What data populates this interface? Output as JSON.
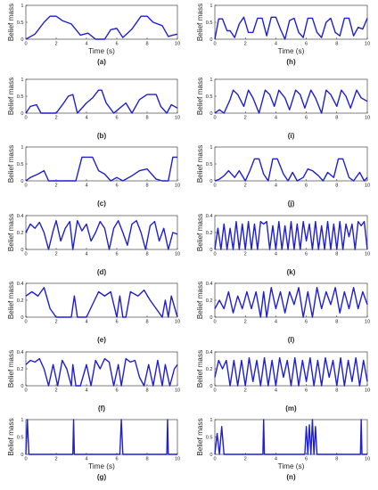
{
  "chart_data": [
    {
      "label": "(a)",
      "type": "line",
      "xlabel": "Time (s)",
      "ylabel": "Belief mass",
      "xlim": [
        0,
        10
      ],
      "ylim": [
        0,
        1
      ],
      "yticks": [
        0,
        0.5,
        1
      ],
      "xticks": [
        0,
        2,
        4,
        6,
        8,
        10
      ],
      "color": "#1f1fd2",
      "x": [
        0,
        0.6,
        1.2,
        1.6,
        2.0,
        2.4,
        3.0,
        3.6,
        4.1,
        4.6,
        5.2,
        5.6,
        6.0,
        6.4,
        7.0,
        7.6,
        8.0,
        8.4,
        9.0,
        9.4,
        9.7,
        10
      ],
      "y": [
        0,
        0.15,
        0.5,
        0.68,
        0.68,
        0.55,
        0.45,
        0.12,
        0.18,
        0.0,
        0.0,
        0.28,
        0.32,
        0.05,
        0.3,
        0.68,
        0.68,
        0.5,
        0.4,
        0.08,
        0.12,
        0.15
      ]
    },
    {
      "label": "(h)",
      "type": "line",
      "xlabel": "Time (s)",
      "ylabel": "Belief mass",
      "xlim": [
        0,
        10
      ],
      "ylim": [
        0,
        1
      ],
      "yticks": [
        0,
        0.5,
        1
      ],
      "xticks": [
        0,
        2,
        4,
        6,
        8,
        10
      ],
      "color": "#1f1fd2",
      "x": [
        0,
        0.25,
        0.5,
        0.8,
        1.0,
        1.3,
        1.6,
        1.9,
        2.2,
        2.5,
        2.8,
        3.1,
        3.4,
        3.7,
        4.0,
        4.3,
        4.6,
        4.9,
        5.2,
        5.5,
        5.8,
        6.1,
        6.4,
        6.7,
        7.0,
        7.3,
        7.6,
        7.9,
        8.2,
        8.5,
        8.8,
        9.1,
        9.4,
        9.7,
        10
      ],
      "y": [
        0,
        0.6,
        0.6,
        0.25,
        0.25,
        0.05,
        0.45,
        0.65,
        0.2,
        0.2,
        0.62,
        0.62,
        0.1,
        0.65,
        0.65,
        0.3,
        0.0,
        0.55,
        0.62,
        0.2,
        0.05,
        0.62,
        0.62,
        0.2,
        0.05,
        0.5,
        0.62,
        0.2,
        0.1,
        0.62,
        0.62,
        0.1,
        0.35,
        0.3,
        0.62
      ]
    },
    {
      "label": "(b)",
      "type": "line",
      "xlabel": "",
      "ylabel": "Belief mass",
      "xlim": [
        0,
        10
      ],
      "ylim": [
        0,
        1
      ],
      "yticks": [
        0,
        0.5,
        1
      ],
      "xticks": [
        0,
        2,
        4,
        6,
        8,
        10
      ],
      "color": "#1f1fd2",
      "x": [
        0,
        0.3,
        0.7,
        1.0,
        1.4,
        2.0,
        2.5,
        2.8,
        3.1,
        3.4,
        4.0,
        4.4,
        4.8,
        5.0,
        5.3,
        5.8,
        6.2,
        6.6,
        7.0,
        7.5,
        8.0,
        8.6,
        8.9,
        9.3,
        9.6,
        10
      ],
      "y": [
        0,
        0.2,
        0.25,
        0.0,
        0.0,
        0.0,
        0.3,
        0.5,
        0.55,
        0.0,
        0.3,
        0.45,
        0.68,
        0.68,
        0.3,
        0.0,
        0.15,
        0.3,
        0.0,
        0.4,
        0.55,
        0.55,
        0.2,
        0.0,
        0.25,
        0.15
      ]
    },
    {
      "label": "(i)",
      "type": "line",
      "xlabel": "",
      "ylabel": "Belief mass",
      "xlim": [
        0,
        10
      ],
      "ylim": [
        0,
        1
      ],
      "yticks": [
        0,
        0.5,
        1
      ],
      "xticks": [
        0,
        2,
        4,
        6,
        8,
        10
      ],
      "color": "#1f1fd2",
      "x": [
        0,
        0.3,
        0.6,
        1.0,
        1.2,
        1.5,
        1.9,
        2.2,
        2.5,
        2.9,
        3.3,
        3.6,
        3.9,
        4.2,
        4.6,
        4.9,
        5.3,
        5.6,
        5.9,
        6.3,
        6.6,
        7.0,
        7.3,
        7.6,
        8.0,
        8.3,
        8.6,
        8.9,
        9.3,
        9.6,
        10
      ],
      "y": [
        0,
        0.1,
        0.0,
        0.4,
        0.68,
        0.55,
        0.2,
        0.68,
        0.45,
        0.0,
        0.68,
        0.55,
        0.2,
        0.68,
        0.45,
        0.1,
        0.68,
        0.55,
        0.15,
        0.68,
        0.45,
        0.0,
        0.68,
        0.55,
        0.2,
        0.68,
        0.5,
        0.15,
        0.68,
        0.45,
        0.35
      ]
    },
    {
      "label": "(c)",
      "type": "line",
      "xlabel": "",
      "ylabel": "Belief mass",
      "xlim": [
        0,
        10
      ],
      "ylim": [
        0,
        1
      ],
      "yticks": [
        0,
        0.5,
        1
      ],
      "xticks": [
        0,
        2,
        4,
        6,
        8,
        10
      ],
      "color": "#1f1fd2",
      "x": [
        0,
        0.3,
        0.8,
        1.2,
        1.5,
        2.0,
        2.5,
        3.0,
        3.3,
        3.7,
        4.4,
        4.8,
        5.2,
        5.6,
        6.0,
        6.4,
        7.0,
        7.5,
        8.0,
        8.6,
        9.0,
        9.4,
        9.7,
        10
      ],
      "y": [
        0,
        0.1,
        0.2,
        0.3,
        0.0,
        0.0,
        0.0,
        0.0,
        0.0,
        0.7,
        0.7,
        0.3,
        0.2,
        0.0,
        0.1,
        0.0,
        0.15,
        0.3,
        0.35,
        0.05,
        0.0,
        0.0,
        0.7,
        0.7
      ]
    },
    {
      "label": "(j)",
      "type": "line",
      "xlabel": "",
      "ylabel": "Belief mass",
      "xlim": [
        0,
        10
      ],
      "ylim": [
        0,
        1
      ],
      "yticks": [
        0,
        0.5,
        1
      ],
      "xticks": [
        0,
        2,
        4,
        6,
        8,
        10
      ],
      "color": "#1f1fd2",
      "x": [
        0,
        0.3,
        0.6,
        0.9,
        1.3,
        1.6,
        2.0,
        2.3,
        2.6,
        2.9,
        3.2,
        3.5,
        3.8,
        4.1,
        4.5,
        4.8,
        5.1,
        5.4,
        5.8,
        6.1,
        6.4,
        6.8,
        7.1,
        7.4,
        7.8,
        8.1,
        8.4,
        8.8,
        9.1,
        9.5,
        9.8,
        10
      ],
      "y": [
        0,
        0.05,
        0.15,
        0.3,
        0.1,
        0.3,
        0.0,
        0.3,
        0.65,
        0.65,
        0.2,
        0.0,
        0.65,
        0.65,
        0.2,
        0.0,
        0.25,
        0.0,
        0.1,
        0.35,
        0.3,
        0.15,
        0.0,
        0.25,
        0.1,
        0.65,
        0.65,
        0.1,
        0.0,
        0.25,
        0.0,
        0.1
      ]
    },
    {
      "label": "(d)",
      "type": "line",
      "xlabel": "",
      "ylabel": "Belief mass",
      "xlim": [
        0,
        10
      ],
      "ylim": [
        0,
        0.4
      ],
      "yticks": [
        0,
        0.2,
        0.4
      ],
      "xticks": [
        0,
        2,
        4,
        6,
        8,
        10
      ],
      "color": "#1f1fd2",
      "x": [
        0,
        0.3,
        0.6,
        0.9,
        1.2,
        1.5,
        1.8,
        2.0,
        2.3,
        2.6,
        2.9,
        3.1,
        3.4,
        3.7,
        4.0,
        4.3,
        4.6,
        4.9,
        5.2,
        5.5,
        5.8,
        6.1,
        6.4,
        6.7,
        7.0,
        7.3,
        7.6,
        7.9,
        8.2,
        8.5,
        8.8,
        9.1,
        9.4,
        9.7,
        10
      ],
      "y": [
        0.2,
        0.3,
        0.25,
        0.32,
        0.2,
        0.0,
        0.22,
        0.34,
        0.1,
        0.25,
        0.33,
        0.0,
        0.34,
        0.22,
        0.3,
        0.1,
        0.2,
        0.33,
        0.25,
        0.0,
        0.25,
        0.34,
        0.2,
        0.05,
        0.3,
        0.34,
        0.2,
        0.0,
        0.28,
        0.33,
        0.1,
        0.25,
        0.0,
        0.2,
        0.18
      ]
    },
    {
      "label": "(k)",
      "type": "line",
      "xlabel": "",
      "ylabel": "Belief mass",
      "xlim": [
        0,
        10
      ],
      "ylim": [
        0,
        0.4
      ],
      "yticks": [
        0,
        0.2,
        0.4
      ],
      "xticks": [
        0,
        2,
        4,
        6,
        8,
        10
      ],
      "color": "#1f1fd2",
      "x": [
        0,
        0.2,
        0.4,
        0.6,
        0.8,
        1.0,
        1.2,
        1.4,
        1.6,
        1.8,
        2.0,
        2.2,
        2.4,
        2.6,
        2.8,
        3.0,
        3.2,
        3.4,
        3.6,
        3.8,
        4.0,
        4.2,
        4.4,
        4.6,
        4.8,
        5.0,
        5.2,
        5.4,
        5.6,
        5.8,
        6.0,
        6.2,
        6.4,
        6.6,
        6.8,
        7.0,
        7.2,
        7.4,
        7.6,
        7.8,
        8.0,
        8.2,
        8.4,
        8.6,
        8.8,
        9.0,
        9.2,
        9.4,
        9.6,
        9.8,
        10
      ],
      "y": [
        0,
        0.25,
        0.0,
        0.3,
        0.0,
        0.25,
        0.0,
        0.33,
        0.0,
        0.3,
        0.0,
        0.33,
        0.0,
        0.3,
        0.0,
        0.33,
        0.3,
        0.33,
        0.0,
        0.28,
        0.0,
        0.33,
        0.0,
        0.28,
        0.0,
        0.33,
        0.0,
        0.3,
        0.0,
        0.33,
        0.1,
        0.3,
        0.0,
        0.33,
        0.0,
        0.28,
        0.0,
        0.33,
        0.0,
        0.3,
        0.0,
        0.33,
        0.0,
        0.3,
        0.15,
        0.3,
        0.0,
        0.33,
        0.28,
        0.33,
        0.0
      ]
    },
    {
      "label": "(e)",
      "type": "line",
      "xlabel": "",
      "ylabel": "Belief mass",
      "xlim": [
        0,
        10
      ],
      "ylim": [
        0,
        0.4
      ],
      "yticks": [
        0,
        0.2,
        0.4
      ],
      "xticks": [
        0,
        2,
        4,
        6,
        8,
        10
      ],
      "color": "#1f1fd2",
      "x": [
        0,
        0.4,
        0.8,
        1.2,
        1.6,
        2.0,
        2.4,
        2.8,
        3.0,
        3.2,
        3.4,
        3.6,
        4.0,
        4.4,
        4.8,
        5.2,
        5.6,
        6.0,
        6.2,
        6.4,
        6.6,
        6.9,
        7.4,
        7.8,
        8.2,
        8.6,
        9.0,
        9.2,
        9.4,
        9.6,
        10
      ],
      "y": [
        0.25,
        0.3,
        0.25,
        0.35,
        0.1,
        0.0,
        0.0,
        0.0,
        0.0,
        0.25,
        0.0,
        0.0,
        0.0,
        0.15,
        0.3,
        0.25,
        0.3,
        0.0,
        0.25,
        0.0,
        0.0,
        0.3,
        0.25,
        0.32,
        0.2,
        0.1,
        0.0,
        0.2,
        0.0,
        0.25,
        0.0
      ]
    },
    {
      "label": "(l)",
      "type": "line",
      "xlabel": "",
      "ylabel": "Belief mass",
      "xlim": [
        0,
        10
      ],
      "ylim": [
        0,
        0.4
      ],
      "yticks": [
        0,
        0.2,
        0.4
      ],
      "xticks": [
        0,
        2,
        4,
        6,
        8,
        10
      ],
      "color": "#1f1fd2",
      "x": [
        0,
        0.3,
        0.6,
        0.9,
        1.2,
        1.5,
        1.8,
        2.1,
        2.4,
        2.7,
        3.0,
        3.2,
        3.4,
        3.7,
        4.0,
        4.3,
        4.6,
        4.9,
        5.2,
        5.5,
        5.8,
        6.1,
        6.4,
        6.7,
        7.0,
        7.3,
        7.6,
        7.9,
        8.2,
        8.5,
        8.8,
        9.1,
        9.4,
        9.7,
        10
      ],
      "y": [
        0.1,
        0.2,
        0.1,
        0.3,
        0.05,
        0.25,
        0.1,
        0.3,
        0.1,
        0.3,
        0.0,
        0.3,
        0.0,
        0.35,
        0.1,
        0.3,
        0.05,
        0.3,
        0.15,
        0.35,
        0.0,
        0.3,
        0.0,
        0.35,
        0.1,
        0.3,
        0.15,
        0.35,
        0.05,
        0.3,
        0.1,
        0.35,
        0.1,
        0.3,
        0.15
      ]
    },
    {
      "label": "(f)",
      "type": "line",
      "xlabel": "",
      "ylabel": "Belief mass",
      "xlim": [
        0,
        10
      ],
      "ylim": [
        0,
        0.4
      ],
      "yticks": [
        0,
        0.2,
        0.4
      ],
      "xticks": [
        0,
        2,
        4,
        6,
        8,
        10
      ],
      "color": "#1f1fd2",
      "x": [
        0,
        0.3,
        0.6,
        0.9,
        1.2,
        1.5,
        1.8,
        2.1,
        2.4,
        2.7,
        3.0,
        3.1,
        3.3,
        3.6,
        4.0,
        4.3,
        4.6,
        4.9,
        5.2,
        5.5,
        5.8,
        6.1,
        6.3,
        6.6,
        6.9,
        7.2,
        7.5,
        7.8,
        8.1,
        8.4,
        8.7,
        9.0,
        9.2,
        9.5,
        9.8,
        10
      ],
      "y": [
        0.25,
        0.3,
        0.28,
        0.32,
        0.2,
        0.0,
        0.25,
        0.0,
        0.3,
        0.2,
        0.0,
        0.25,
        0.0,
        0.0,
        0.25,
        0.0,
        0.3,
        0.2,
        0.32,
        0.28,
        0.0,
        0.25,
        0.0,
        0.32,
        0.28,
        0.3,
        0.1,
        0.0,
        0.25,
        0.0,
        0.3,
        0.0,
        0.25,
        0.0,
        0.2,
        0.25
      ]
    },
    {
      "label": "(m)",
      "type": "line",
      "xlabel": "",
      "ylabel": "Belief mass",
      "xlim": [
        0,
        10
      ],
      "ylim": [
        0,
        0.4
      ],
      "yticks": [
        0,
        0.2,
        0.4
      ],
      "xticks": [
        0,
        2,
        4,
        6,
        8,
        10
      ],
      "color": "#1f1fd2",
      "x": [
        0,
        0.25,
        0.5,
        0.75,
        1.0,
        1.25,
        1.5,
        1.75,
        2.0,
        2.25,
        2.5,
        2.75,
        3.0,
        3.25,
        3.5,
        3.75,
        4.0,
        4.25,
        4.5,
        4.75,
        5.0,
        5.25,
        5.5,
        5.75,
        6.0,
        6.25,
        6.5,
        6.75,
        7.0,
        7.25,
        7.5,
        7.75,
        8.0,
        8.25,
        8.5,
        8.75,
        9.0,
        9.25,
        9.5,
        9.75,
        10
      ],
      "y": [
        0.1,
        0.3,
        0.2,
        0.3,
        0.0,
        0.3,
        0.0,
        0.3,
        0.0,
        0.33,
        0.05,
        0.3,
        0.0,
        0.33,
        0.0,
        0.3,
        0.0,
        0.33,
        0.1,
        0.3,
        0.0,
        0.33,
        0.0,
        0.3,
        0.05,
        0.33,
        0.0,
        0.3,
        0.0,
        0.33,
        0.1,
        0.3,
        0.0,
        0.33,
        0.0,
        0.3,
        0.05,
        0.33,
        0.0,
        0.3,
        0.05
      ]
    },
    {
      "label": "(g)",
      "type": "line",
      "xlabel": "Time (s)",
      "ylabel": "Belief mass",
      "xlim": [
        0,
        10
      ],
      "ylim": [
        0,
        1
      ],
      "yticks": [
        0,
        0.5,
        1
      ],
      "xticks": [
        0,
        2,
        4,
        6,
        8,
        10
      ],
      "color": "#1f1fd2",
      "x": [
        0,
        0.1,
        0.2,
        3.1,
        3.15,
        3.2,
        6.2,
        6.3,
        6.4,
        9.3,
        9.35,
        9.4,
        10
      ],
      "y": [
        0,
        1,
        0,
        0,
        1,
        0,
        0,
        1,
        0,
        0,
        1,
        0,
        0
      ]
    },
    {
      "label": "(n)",
      "type": "line",
      "xlabel": "Time (s)",
      "ylabel": "Belief mass",
      "xlim": [
        0,
        10
      ],
      "ylim": [
        0,
        1
      ],
      "yticks": [
        0,
        0.5,
        1
      ],
      "xticks": [
        0,
        2,
        4,
        6,
        8,
        10
      ],
      "color": "#1f1fd2",
      "x": [
        0,
        0.15,
        0.3,
        0.45,
        0.6,
        0.75,
        3.15,
        3.2,
        3.25,
        5.9,
        6.0,
        6.1,
        6.2,
        6.3,
        6.4,
        6.5,
        6.6,
        6.7,
        9.55,
        9.6,
        9.65,
        10
      ],
      "y": [
        0,
        0.6,
        0,
        0.8,
        0,
        0,
        0,
        1,
        0,
        0,
        0.8,
        0,
        0.85,
        0,
        1,
        0,
        0.8,
        0,
        0,
        1,
        0,
        0
      ]
    }
  ]
}
